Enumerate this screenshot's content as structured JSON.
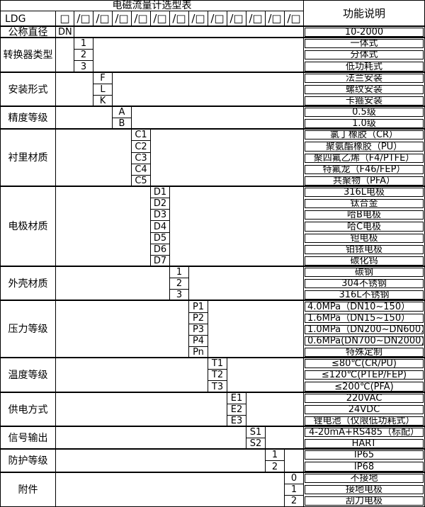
{
  "header": {
    "title": "电磁流量计选型表",
    "function_column_title": "功能说明",
    "model_prefix": "LDG",
    "box_symbol": "□",
    "slash_box_symbol": "/□",
    "slash_box_count": 12
  },
  "colors": {
    "border": "#000000",
    "background": "#ffffff",
    "text": "#000000"
  },
  "groups": [
    {
      "label": "公称直径",
      "code_col": 1,
      "rows": [
        {
          "code": "DN",
          "desc": "10-2000"
        }
      ]
    },
    {
      "label": "转换器类型",
      "code_col": 2,
      "rows": [
        {
          "code": "1",
          "desc": "一体式"
        },
        {
          "code": "2",
          "desc": "分体式"
        },
        {
          "code": "3",
          "desc": "低功耗式"
        }
      ]
    },
    {
      "label": "安装形式",
      "code_col": 3,
      "rows": [
        {
          "code": "F",
          "desc": "法兰安装"
        },
        {
          "code": "L",
          "desc": "螺纹安装"
        },
        {
          "code": "K",
          "desc": "卡箍安装"
        }
      ]
    },
    {
      "label": "精度等级",
      "code_col": 4,
      "rows": [
        {
          "code": "A",
          "desc": "0.5级"
        },
        {
          "code": "B",
          "desc": "1.0级"
        }
      ]
    },
    {
      "label": "衬里材质",
      "code_col": 5,
      "rows": [
        {
          "code": "C1",
          "desc": "氯丁橡胶（CR）"
        },
        {
          "code": "C2",
          "desc": "聚氨酯橡胶（PU）"
        },
        {
          "code": "C3",
          "desc": "聚四氟乙烯（F4/PTFE）"
        },
        {
          "code": "C4",
          "desc": "特氟龙（F46/FEP）"
        },
        {
          "code": "C5",
          "desc": "共聚物（PFA）"
        }
      ]
    },
    {
      "label": "电极材质",
      "code_col": 6,
      "rows": [
        {
          "code": "D1",
          "desc": "316L电极"
        },
        {
          "code": "D2",
          "desc": "钛合金"
        },
        {
          "code": "D3",
          "desc": "哈B电极"
        },
        {
          "code": "D4",
          "desc": "哈C电极"
        },
        {
          "code": "D5",
          "desc": "钽电极"
        },
        {
          "code": "D6",
          "desc": "铂铱电极"
        },
        {
          "code": "D7",
          "desc": "碳化钨"
        }
      ]
    },
    {
      "label": "外壳材质",
      "code_col": 7,
      "rows": [
        {
          "code": "1",
          "desc": "碳钢"
        },
        {
          "code": "2",
          "desc": "304不锈钢"
        },
        {
          "code": "3",
          "desc": "316L不锈钢"
        }
      ]
    },
    {
      "label": "压力等级",
      "code_col": 8,
      "rows": [
        {
          "code": "P1",
          "desc": "4.0MPa（DN10~150）",
          "desc_align": "left"
        },
        {
          "code": "P2",
          "desc": "1.6MPa（DN15~150）",
          "desc_align": "left"
        },
        {
          "code": "P3",
          "desc": "1.0MPa（DN200~DN600）",
          "desc_align": "left"
        },
        {
          "code": "P4",
          "desc": "0.6MPa(DN700~DN2000)",
          "desc_align": "left"
        },
        {
          "code": "Pn",
          "desc": "特殊定制"
        }
      ]
    },
    {
      "label": "温度等级",
      "code_col": 9,
      "rows": [
        {
          "code": "T1",
          "desc": "≤80℃(CR/PU)"
        },
        {
          "code": "T2",
          "desc": "≤120℃(PTEP/FEP)"
        },
        {
          "code": "T3",
          "desc": "≤200℃(PFA)"
        }
      ]
    },
    {
      "label": "供电方式",
      "code_col": 10,
      "rows": [
        {
          "code": "E1",
          "desc": "220VAC"
        },
        {
          "code": "E2",
          "desc": "24VDC"
        },
        {
          "code": "E3",
          "desc": "锂电池（仅限低功耗式）"
        }
      ]
    },
    {
      "label": "信号输出",
      "code_col": 11,
      "rows": [
        {
          "code": "S1",
          "desc": "4-20mA+RS485（标配）"
        },
        {
          "code": "S2",
          "desc": "HART"
        }
      ]
    },
    {
      "label": "防护等级",
      "code_col": 12,
      "rows": [
        {
          "code": "1",
          "desc": "IP65"
        },
        {
          "code": "2",
          "desc": "IP68"
        }
      ]
    },
    {
      "label": "附件",
      "code_col": 13,
      "rows": [
        {
          "code": "0",
          "desc": "不接地"
        },
        {
          "code": "1",
          "desc": "接地电极"
        },
        {
          "code": "2",
          "desc": "刮刀电极"
        }
      ]
    }
  ]
}
